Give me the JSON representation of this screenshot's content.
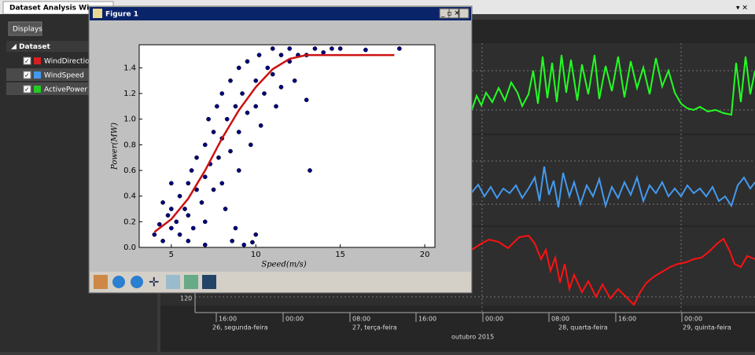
{
  "tab": {
    "title": "Dataset Analysis Win"
  },
  "sidebar": {
    "button": "Displays",
    "group": "Dataset",
    "items": [
      {
        "label": "WindDirection",
        "color": "#d42020"
      },
      {
        "label": "WindSpeed",
        "color": "#4499ee"
      },
      {
        "label": "ActivePower",
        "color": "#22cc22"
      }
    ]
  },
  "figure": {
    "title": "Figure 1"
  },
  "timeline": {
    "axis_label": "120",
    "times": [
      "16:00",
      "00:00",
      "08:00",
      "16:00",
      "00:00",
      "08:00",
      "16:00",
      "00:00"
    ],
    "days": [
      "26, segunda-feira",
      "27, terça-feira",
      "28, quarta-feira",
      "29, quinta-feira"
    ],
    "month": "outubro 2015"
  },
  "chart_data": {
    "type": "scatter",
    "xlabel": "Speed(m/s)",
    "ylabel": "Power(MW)",
    "xlim": [
      3.1,
      20.6
    ],
    "ylim": [
      0,
      1.58
    ],
    "xticks": [
      5,
      10,
      15,
      20
    ],
    "yticks": [
      {
        "value": 0,
        "label": "0.0"
      },
      0.2,
      0.4,
      0.6,
      0.8,
      {
        "value": 1,
        "label": "1.0"
      },
      1.2,
      1.4
    ],
    "series": [
      {
        "color": "#00007f",
        "x": [
          4,
          4.3,
          4.5,
          4.8,
          5,
          5,
          5.3,
          5.5,
          5.5,
          5.8,
          6,
          6,
          6.2,
          6.3,
          6.5,
          6.5,
          6.8,
          7,
          7,
          7,
          7.2,
          7.3,
          7.5,
          7.5,
          7.7,
          7.8,
          8,
          8,
          8,
          8.2,
          8.3,
          8.5,
          8.5,
          8.6,
          8.8,
          9,
          9,
          9,
          9.2,
          9.3,
          9.5,
          9.5,
          9.7,
          10,
          10,
          10,
          10.2,
          10.3,
          10.5,
          10.7,
          11,
          11,
          11.2,
          11.5,
          11.5,
          12,
          12,
          12.3,
          12.5,
          13,
          13,
          13.2,
          13.5,
          14,
          14.5,
          15,
          16.5,
          18.5,
          6,
          7,
          5,
          4.5,
          8.8,
          9.8
        ],
        "values": [
          0.1,
          0.18,
          0.05,
          0.25,
          0.15,
          0.3,
          0.2,
          0.4,
          0.1,
          0.3,
          0.5,
          0.25,
          0.6,
          0.15,
          0.45,
          0.7,
          0.35,
          0.8,
          0.55,
          0.2,
          1.0,
          0.65,
          0.45,
          0.9,
          1.1,
          0.7,
          0.5,
          1.2,
          0.85,
          0.3,
          1.0,
          1.3,
          0.75,
          0.05,
          1.1,
          0.9,
          1.4,
          0.6,
          1.2,
          0.02,
          1.05,
          1.45,
          0.8,
          1.3,
          1.1,
          0.1,
          1.5,
          0.95,
          1.2,
          1.4,
          1.35,
          1.55,
          1.1,
          1.5,
          1.25,
          1.45,
          1.55,
          1.3,
          1.5,
          1.5,
          1.15,
          0.6,
          1.55,
          1.52,
          1.55,
          1.55,
          1.54,
          1.55,
          0.05,
          0.02,
          0.5,
          0.35,
          0.15,
          0.04
        ]
      },
      {
        "type": "line",
        "color": "#cc1111",
        "x": [
          4,
          5,
          6,
          7,
          8,
          9,
          10,
          11,
          12,
          13,
          14,
          16,
          18.2
        ],
        "values": [
          0.12,
          0.22,
          0.38,
          0.6,
          0.85,
          1.07,
          1.25,
          1.39,
          1.47,
          1.5,
          1.5,
          1.5,
          1.5
        ]
      }
    ]
  }
}
